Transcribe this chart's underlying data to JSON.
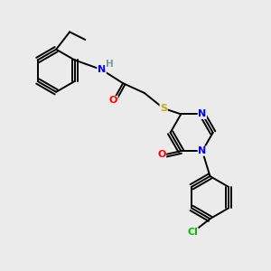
{
  "background_color": "#ebebeb",
  "bond_color": "#000000",
  "atom_colors": {
    "N": "#0000ff",
    "O": "#ff0000",
    "S": "#ccaa00",
    "Cl": "#00bb00",
    "H": "#7a9a9a",
    "C": "#000000"
  },
  "figsize": [
    3.0,
    3.0
  ],
  "dpi": 100
}
